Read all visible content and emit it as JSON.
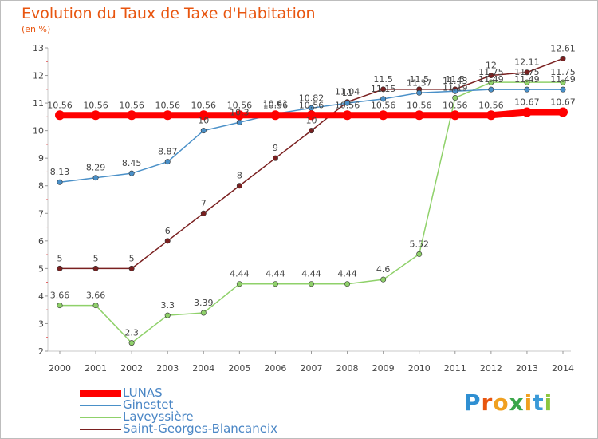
{
  "title": "Evolution du Taux de Taxe d'Habitation",
  "unit": "(en %)",
  "brand": {
    "letters": [
      "P",
      "r",
      "o",
      "x",
      "i",
      "t",
      "i"
    ],
    "colors": [
      "#2f8fd2",
      "#e8550f",
      "#f0a020",
      "#3aa64a",
      "#f0a020",
      "#3a9ad8",
      "#8dc63f"
    ]
  },
  "chart_data": {
    "type": "line",
    "x": [
      "2000",
      "2001",
      "2002",
      "2003",
      "2004",
      "2005",
      "2006",
      "2007",
      "2008",
      "2009",
      "2010",
      "2011",
      "2012",
      "2013",
      "2014"
    ],
    "ylim": [
      2,
      13
    ],
    "yticks": [
      "2",
      "3",
      "4",
      "5",
      "6",
      "7",
      "8",
      "9",
      "10",
      "11",
      "12",
      "13"
    ],
    "grid": false,
    "legend_position": "bottom-left",
    "series": [
      {
        "name": "LUNAS",
        "color": "#ff0000",
        "values": [
          10.56,
          10.56,
          10.56,
          10.56,
          10.56,
          10.56,
          10.56,
          10.56,
          10.56,
          10.56,
          10.56,
          10.56,
          10.56,
          10.67,
          10.67
        ],
        "labels": [
          "10.56",
          "10.56",
          "10.56",
          "10.56",
          "10.56",
          "10.56",
          "10.56",
          "10.56",
          "10.56",
          "10.56",
          "10.56",
          "10.56",
          "10.56",
          "10.67",
          "10.67"
        ]
      },
      {
        "name": "Ginestet",
        "color": "#4a90c8",
        "values": [
          8.13,
          8.29,
          8.45,
          8.87,
          10.0,
          10.3,
          10.61,
          10.82,
          11.0,
          11.15,
          11.37,
          11.43,
          11.49,
          11.49,
          11.49
        ],
        "labels": [
          "8.13",
          "8.29",
          "8.45",
          "8.87",
          "10",
          "10.3",
          "10.61",
          "10.82",
          "11",
          "11.15",
          "11.37",
          "11.43",
          "11.49",
          "11.49",
          "11.49"
        ]
      },
      {
        "name": "Laveyssière",
        "color": "#8fd16a",
        "values": [
          3.66,
          3.66,
          2.3,
          3.3,
          3.39,
          4.44,
          4.44,
          4.44,
          4.44,
          4.6,
          5.52,
          11.19,
          11.75,
          11.75,
          11.75
        ],
        "labels": [
          "3.66",
          "3.66",
          "2.3",
          "3.3",
          "3.39",
          "4.44",
          "4.44",
          "4.44",
          "4.44",
          "4.6",
          "5.52",
          "11.19",
          "11.75",
          "11.75",
          "11.75"
        ]
      },
      {
        "name": "Saint-Georges-Blancaneix",
        "color": "#7a2020",
        "values": [
          5,
          5,
          5,
          6,
          7,
          8,
          9,
          10,
          11.04,
          11.5,
          11.5,
          11.5,
          12,
          12.11,
          12.61
        ],
        "labels": [
          "5",
          "5",
          "5",
          "6",
          "7",
          "8",
          "9",
          "10",
          "11.04",
          "11.5",
          "11.5",
          "11.5",
          "12",
          "12.11",
          "12.61"
        ]
      }
    ]
  }
}
